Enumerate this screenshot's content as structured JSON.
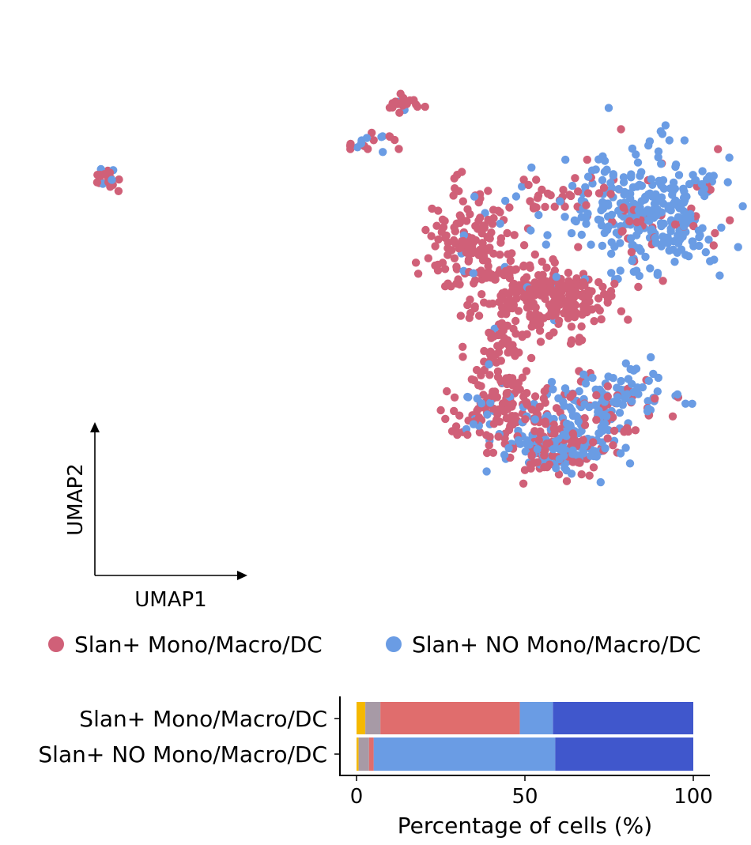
{
  "chart_data": [
    {
      "type": "scatter",
      "xlabel": "UMAP1",
      "ylabel": "UMAP2",
      "legend_position": "bottom",
      "legend": [
        {
          "label": "Slan+ Mono/Macro/DC",
          "color": "#D06078"
        },
        {
          "label": "Slan+ NO Mono/Macro/DC",
          "color": "#6A9CE4"
        }
      ],
      "xlim": [
        0,
        100
      ],
      "ylim": [
        0,
        100
      ],
      "clusters": [
        {
          "cx": 53.5,
          "cy": 88.4,
          "sx": 1.0,
          "sy": 1.0,
          "n": 22,
          "mix": 0.3
        },
        {
          "cx": 49.2,
          "cy": 81.2,
          "sx": 2.0,
          "sy": 1.0,
          "n": 18,
          "mix": 0.35
        },
        {
          "cx": 12.5,
          "cy": 74.6,
          "sx": 1.0,
          "sy": 1.2,
          "n": 20,
          "mix": 0.2
        },
        {
          "cx": 87.0,
          "cy": 68.6,
          "sx": 5.6,
          "sy": 5.4,
          "n": 340,
          "mix": 0.85
        },
        {
          "cx": 62.5,
          "cy": 62.2,
          "sx": 2.8,
          "sy": 4.5,
          "n": 150,
          "mix": 0.04
        },
        {
          "cx": 73.0,
          "cy": 53.0,
          "sx": 4.8,
          "sy": 3.2,
          "n": 230,
          "mix": 0.03
        },
        {
          "cx": 67.0,
          "cy": 43.0,
          "sx": 2.0,
          "sy": 4.0,
          "n": 70,
          "mix": 0.04
        },
        {
          "cx": 67.5,
          "cy": 32.0,
          "sx": 4.0,
          "sy": 3.0,
          "n": 150,
          "mix": 0.2
        },
        {
          "cx": 74.5,
          "cy": 25.0,
          "sx": 4.2,
          "sy": 2.4,
          "n": 190,
          "mix": 0.55
        },
        {
          "cx": 81.5,
          "cy": 33.5,
          "sx": 4.0,
          "sy": 3.4,
          "n": 140,
          "mix": 0.72
        },
        {
          "cx": 72.0,
          "cy": 71.2,
          "sx": 5.2,
          "sy": 1.6,
          "n": 36,
          "mix": 0.05
        }
      ]
    },
    {
      "type": "bar",
      "orientation": "horizontal",
      "stacked": true,
      "xlabel": "Percentage of cells (%)",
      "xlim": [
        0,
        100
      ],
      "xticks": [
        "0",
        "50",
        "100"
      ],
      "categories": [
        "Slan+ Mono/Macro/DC",
        "Slan+ NO Mono/Macro/DC"
      ],
      "segment_colors": [
        "#F5B800",
        "#A79AA6",
        "#E06D6D",
        "#6A9CE4",
        "#4057CC"
      ],
      "rows": [
        [
          2.6,
          4.5,
          41.4,
          9.8,
          41.7
        ],
        [
          0.6,
          3.1,
          1.4,
          53.9,
          41.0
        ]
      ]
    }
  ]
}
